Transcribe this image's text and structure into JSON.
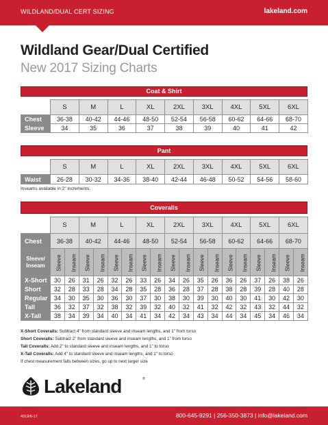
{
  "header": {
    "left": "WILDLAND/DUAL CERT SIZING",
    "right": "lakeland.com"
  },
  "title": "Wildland Gear/Dual Certified",
  "subtitle": "New 2017 Sizing Charts",
  "sizes": [
    "S",
    "M",
    "L",
    "XL",
    "2XL",
    "3XL",
    "4XL",
    "5XL",
    "6XL"
  ],
  "coat_shirt": {
    "heading": "Coat & Shirt",
    "rows": [
      {
        "label": "Chest",
        "values": [
          "36-38",
          "40-42",
          "44-46",
          "48-50",
          "52-54",
          "56-58",
          "60-62",
          "64-66",
          "68-70"
        ]
      },
      {
        "label": "Sleeve",
        "values": [
          "34",
          "35",
          "36",
          "37",
          "38",
          "39",
          "40",
          "41",
          "42"
        ]
      }
    ]
  },
  "pant": {
    "heading": "Pant",
    "rows": [
      {
        "label": "Waist",
        "values": [
          "26-28",
          "30-32",
          "34-36",
          "38-40",
          "42-44",
          "46-48",
          "50-52",
          "54-56",
          "58-60"
        ]
      }
    ],
    "note": "Inseams available in 2\" increments."
  },
  "coveralls": {
    "heading": "Coveralls",
    "chest_label": "Chest",
    "chest": [
      "36-38",
      "40-42",
      "44-46",
      "48-50",
      "52-54",
      "56-58",
      "60-62",
      "64-66",
      "68-70"
    ],
    "sub_label_1": "Sleeve/",
    "sub_label_2": "Inseam",
    "sub_headers": [
      "Sleeve",
      "Inseam"
    ],
    "rows": [
      {
        "label": "X-Short",
        "values": [
          "30",
          "26",
          "31",
          "26",
          "32",
          "26",
          "33",
          "26",
          "34",
          "26",
          "35",
          "26",
          "36",
          "26",
          "37",
          "26",
          "38",
          "26"
        ]
      },
      {
        "label": "Short",
        "values": [
          "32",
          "28",
          "33",
          "28",
          "34",
          "28",
          "35",
          "28",
          "36",
          "28",
          "37",
          "28",
          "38",
          "28",
          "39",
          "28",
          "40",
          "28"
        ]
      },
      {
        "label": "Regular",
        "values": [
          "34",
          "30",
          "35",
          "30",
          "36",
          "30",
          "37",
          "30",
          "38",
          "30",
          "39",
          "30",
          "40",
          "30",
          "41",
          "30",
          "42",
          "30"
        ]
      },
      {
        "label": "Tall",
        "values": [
          "36",
          "32",
          "37",
          "32",
          "38",
          "32",
          "39",
          "32",
          "40",
          "32",
          "41",
          "32",
          "42",
          "32",
          "43",
          "32",
          "44",
          "32"
        ]
      },
      {
        "label": "X-Tall",
        "values": [
          "38",
          "34",
          "39",
          "34",
          "40",
          "34",
          "41",
          "34",
          "42",
          "34",
          "43",
          "34",
          "44",
          "34",
          "45",
          "34",
          "46",
          "34"
        ]
      }
    ]
  },
  "footnotes": [
    {
      "bold": "X-Short Coveralls:",
      "text": " Subtract 4\" from standard sleeve and inseam lengths, and 1\" from torso"
    },
    {
      "bold": "Short Coveralls:",
      "text": " Subtract 2\" from standard sleeve and inseam lengths, and 1\" from torso"
    },
    {
      "bold": "Tall Coveralls:",
      "text": " Add 2\" to standard sleeve and inseam lengths, and 1\" to torso"
    },
    {
      "bold": "X-Tall Coveralls:",
      "text": " Add 4\" to standard sleeve and inseam lengths, and 1\" to torso"
    },
    {
      "bold": "",
      "text": "If chest measurement falls between sizes, go up to next larger size"
    }
  ],
  "logo": {
    "wordmark": "Lakeland",
    "reg": "®"
  },
  "footer": {
    "code": "4319/6-17",
    "contact": "800-645-9291 | 256-350-3873 | info@lakeland.com"
  },
  "colors": {
    "brand_red": "#c8202e",
    "label_gray": "#8a8a8a",
    "header_gray": "#e0e0e0"
  }
}
